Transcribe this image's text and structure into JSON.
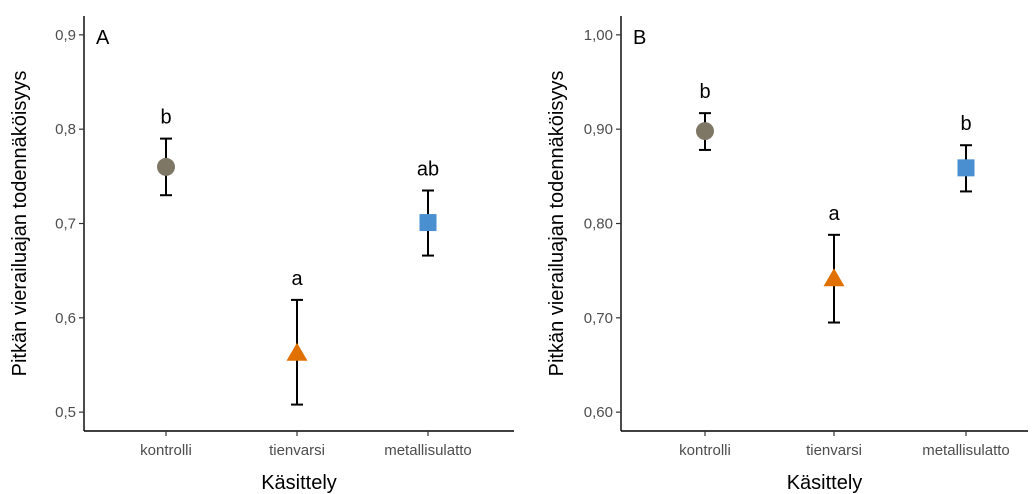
{
  "colors": {
    "kontrolli": "#7f7766",
    "tienvarsi": "#e07000",
    "metallisulatto": "#4a8fcf"
  },
  "chart_data": [
    {
      "type": "scatter",
      "panel_label": "A",
      "xlabel": "Käsittely",
      "ylabel": "Pitkän vierailuajan todennäköisyys",
      "categories": [
        "kontrolli",
        "tienvarsi",
        "metallisulatto"
      ],
      "ylim": [
        0.48,
        0.92
      ],
      "yticks": [
        "0,5",
        "0,6",
        "0,7",
        "0,8",
        "0,9"
      ],
      "ytick_values": [
        0.5,
        0.6,
        0.7,
        0.8,
        0.9
      ],
      "grid": false,
      "points": [
        {
          "category": "kontrolli",
          "value": 0.76,
          "lower": 0.73,
          "upper": 0.79,
          "shape": "circle",
          "label": "b"
        },
        {
          "category": "tienvarsi",
          "value": 0.563,
          "lower": 0.508,
          "upper": 0.619,
          "shape": "triangle",
          "label": "a"
        },
        {
          "category": "metallisulatto",
          "value": 0.701,
          "lower": 0.666,
          "upper": 0.735,
          "shape": "square",
          "label": "ab"
        }
      ]
    },
    {
      "type": "scatter",
      "panel_label": "B",
      "xlabel": "Käsittely",
      "ylabel": "Pitkän vierailuajan todennäköisyys",
      "categories": [
        "kontrolli",
        "tienvarsi",
        "metallisulatto"
      ],
      "ylim": [
        0.58,
        1.02
      ],
      "yticks": [
        "0,60",
        "0,70",
        "0,80",
        "0,90",
        "1,00"
      ],
      "ytick_values": [
        0.6,
        0.7,
        0.8,
        0.9,
        1.0
      ],
      "grid": false,
      "points": [
        {
          "category": "kontrolli",
          "value": 0.898,
          "lower": 0.878,
          "upper": 0.917,
          "shape": "circle",
          "label": "b"
        },
        {
          "category": "tienvarsi",
          "value": 0.742,
          "lower": 0.695,
          "upper": 0.788,
          "shape": "triangle",
          "label": "a"
        },
        {
          "category": "metallisulatto",
          "value": 0.859,
          "lower": 0.834,
          "upper": 0.883,
          "shape": "square",
          "label": "b"
        }
      ]
    }
  ]
}
